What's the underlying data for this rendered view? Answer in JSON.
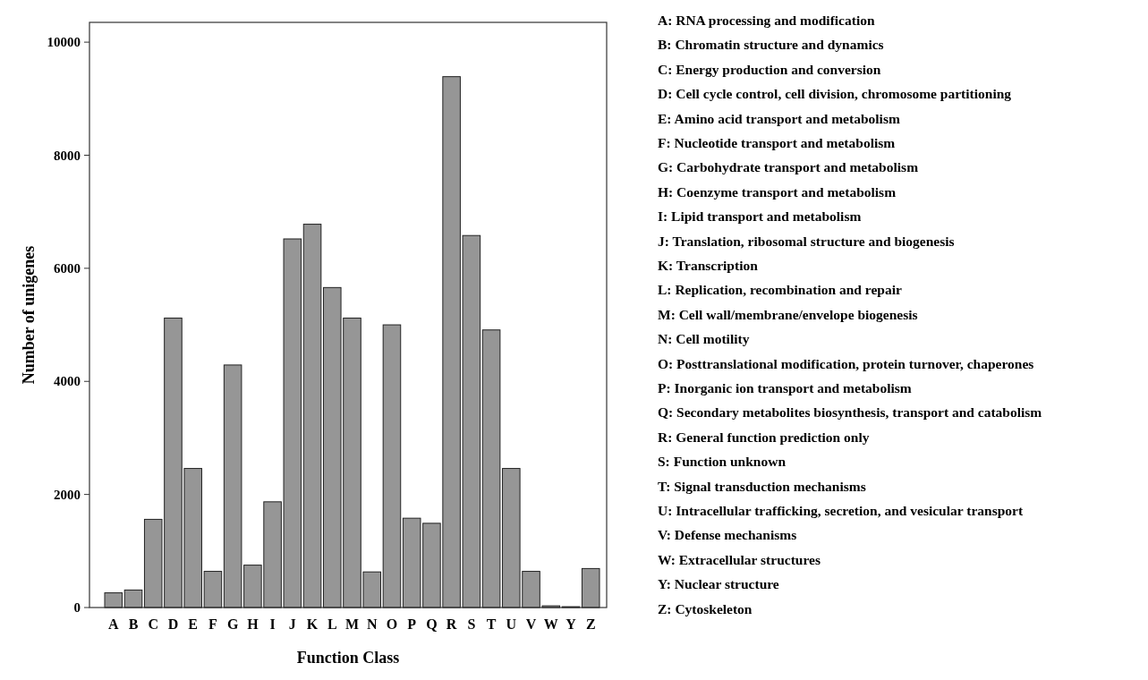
{
  "chart_data": {
    "type": "bar",
    "xlabel": "Function Class",
    "ylabel": "Number of unigenes",
    "categories": [
      "A",
      "B",
      "C",
      "D",
      "E",
      "F",
      "G",
      "H",
      "I",
      "J",
      "K",
      "L",
      "M",
      "N",
      "O",
      "P",
      "Q",
      "R",
      "S",
      "T",
      "U",
      "V",
      "W",
      "Y",
      "Z"
    ],
    "values": [
      260,
      310,
      1560,
      5120,
      2460,
      640,
      4290,
      750,
      1870,
      6520,
      6780,
      5660,
      5120,
      630,
      5000,
      1580,
      1490,
      9390,
      6580,
      4910,
      2460,
      640,
      30,
      15,
      690
    ],
    "color": "#969696",
    "ylim": [
      0,
      10350
    ],
    "yticks": [
      0,
      2000,
      4000,
      6000,
      8000,
      10000
    ],
    "grid": false,
    "annotations": [
      "A: RNA processing and modification",
      "B: Chromatin structure and dynamics",
      "C: Energy production and conversion",
      "D: Cell cycle control, cell division, chromosome partitioning",
      "E: Amino acid transport and metabolism",
      "F: Nucleotide transport and metabolism",
      "G: Carbohydrate transport and metabolism",
      "H: Coenzyme transport and metabolism",
      "I: Lipid transport and metabolism",
      "J: Translation, ribosomal structure and biogenesis",
      "K: Transcription",
      "L: Replication, recombination and repair",
      "M: Cell wall/membrane/envelope biogenesis",
      "N: Cell motility",
      "O: Posttranslational modification, protein turnover, chaperones",
      "P: Inorganic ion transport and metabolism",
      "Q: Secondary metabolites biosynthesis, transport and catabolism",
      "R: General function prediction only",
      "S: Function unknown",
      "T: Signal transduction mechanisms",
      "U: Intracellular trafficking, secretion, and vesicular transport",
      "V: Defense mechanisms",
      "W: Extracellular structures",
      "Y: Nuclear structure",
      "Z: Cytoskeleton"
    ]
  }
}
